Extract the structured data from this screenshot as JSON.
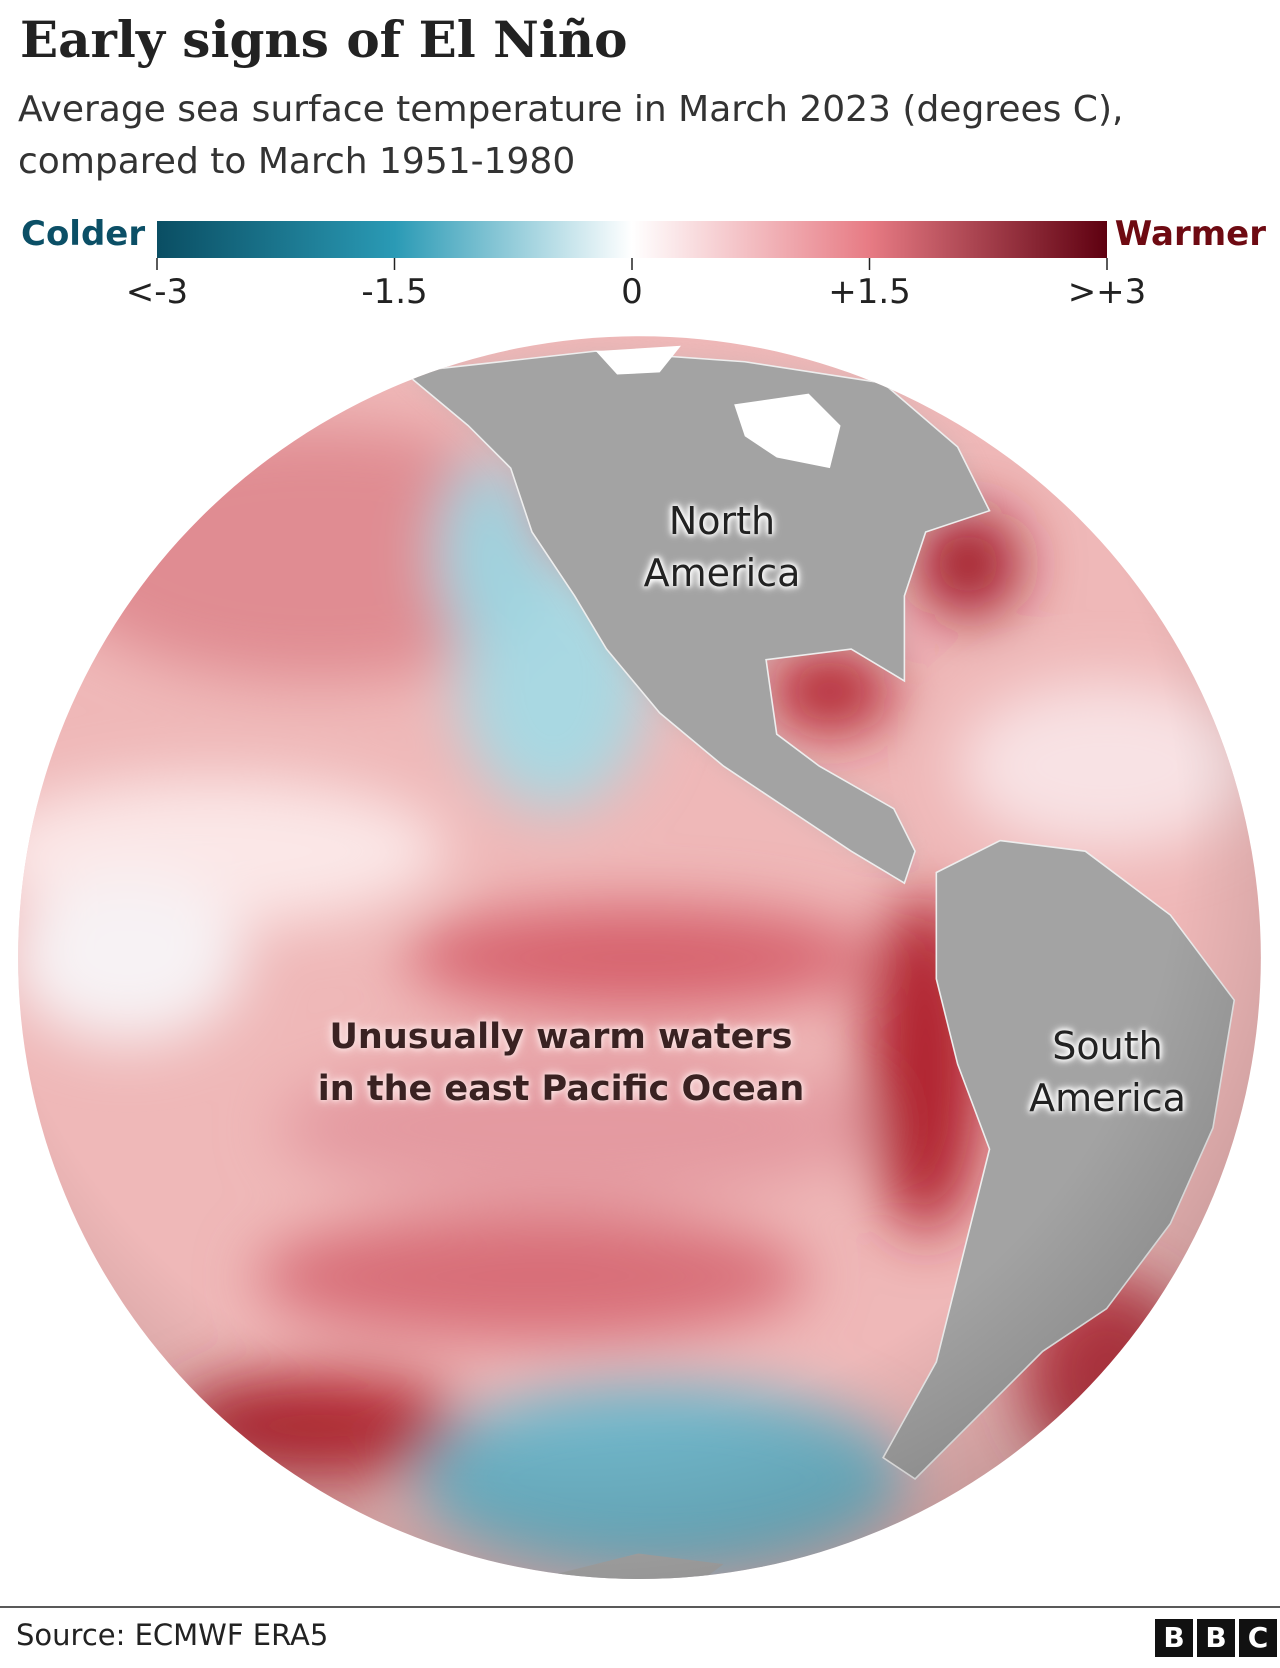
{
  "header": {
    "title": "Early signs of El Niño",
    "subtitle": "Average sea surface temperature in March 2023 (degrees C), compared to March 1951-1980"
  },
  "legend": {
    "left_label": "Colder",
    "right_label": "Warmer",
    "range": [
      -3,
      3
    ],
    "ticks": [
      {
        "value": -3,
        "label": "<-3"
      },
      {
        "value": -1.5,
        "label": "-1.5"
      },
      0,
      {
        "value": 1.5,
        "label": "+1.5"
      },
      {
        "value": 3,
        "label": ">+3"
      }
    ]
  },
  "map": {
    "labels": [
      "North America",
      "South America"
    ],
    "annotation": "Unusually warm waters in the east Pacific Ocean"
  },
  "footer": {
    "source": "Source: ECMWF ERA5",
    "logo": [
      "B",
      "B",
      "C"
    ]
  }
}
